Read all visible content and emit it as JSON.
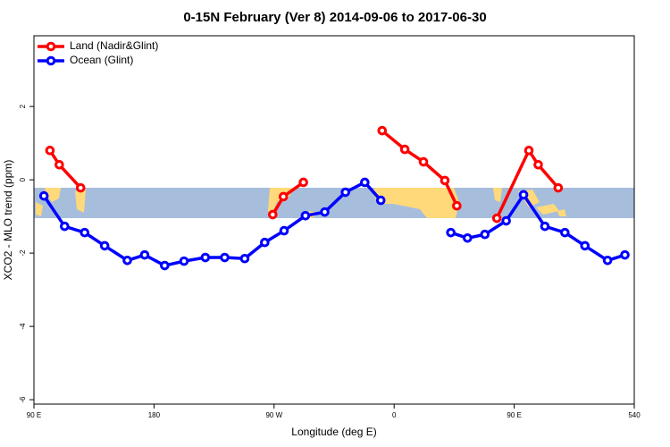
{
  "chart_data": {
    "type": "line",
    "title": "0-15N February (Ver 8)   2014-09-06 to 2017-06-30",
    "x_label": "Longitude (deg E)",
    "y_label": "XCO2 - MLO trend (ppm)",
    "xlim": [
      90,
      540
    ],
    "ylim": [
      -6.12,
      3.93
    ],
    "xticks": [
      {
        "value": 90,
        "label": "90 E"
      },
      180,
      {
        "value": 270,
        "label": "90 W"
      },
      {
        "value": 360,
        "label": "0"
      },
      {
        "value": 450,
        "label": "90 E"
      },
      540
    ],
    "yticks": [
      -6,
      -4,
      -2,
      0,
      2
    ],
    "legend": "top-left",
    "series": [
      {
        "name": "Land (Nadir&Glint)",
        "color": "#ff0000",
        "x": [
          102,
          109,
          125,
          null,
          269,
          277,
          292,
          null,
          351,
          368,
          382,
          398,
          407,
          null,
          437,
          461,
          468,
          483
        ],
        "values": [
          0.8,
          0.41,
          -0.22,
          null,
          -0.95,
          -0.46,
          -0.07,
          null,
          1.34,
          0.83,
          0.49,
          -0.02,
          -0.71,
          null,
          -1.05,
          0.8,
          0.41,
          -0.22
        ]
      },
      {
        "name": "Ocean (Glint)",
        "color": "#0000ff",
        "x": [
          97.5,
          113,
          128,
          143,
          160,
          173,
          188,
          202.5,
          218.5,
          233,
          248,
          263,
          277.5,
          293.5,
          308,
          323.5,
          338,
          350,
          null,
          402.5,
          415,
          428,
          444,
          457,
          473,
          488,
          503,
          520,
          533
        ],
        "values": [
          -0.44,
          -1.27,
          -1.44,
          -1.8,
          -2.2,
          -2.05,
          -2.34,
          -2.22,
          -2.12,
          -2.12,
          -2.15,
          -1.71,
          -1.39,
          -0.98,
          -0.88,
          -0.34,
          -0.07,
          -0.56,
          null,
          -1.44,
          -1.59,
          -1.49,
          -1.12,
          -0.41,
          -1.27,
          -1.44,
          -1.8,
          -2.2,
          -2.05
        ]
      }
    ]
  }
}
